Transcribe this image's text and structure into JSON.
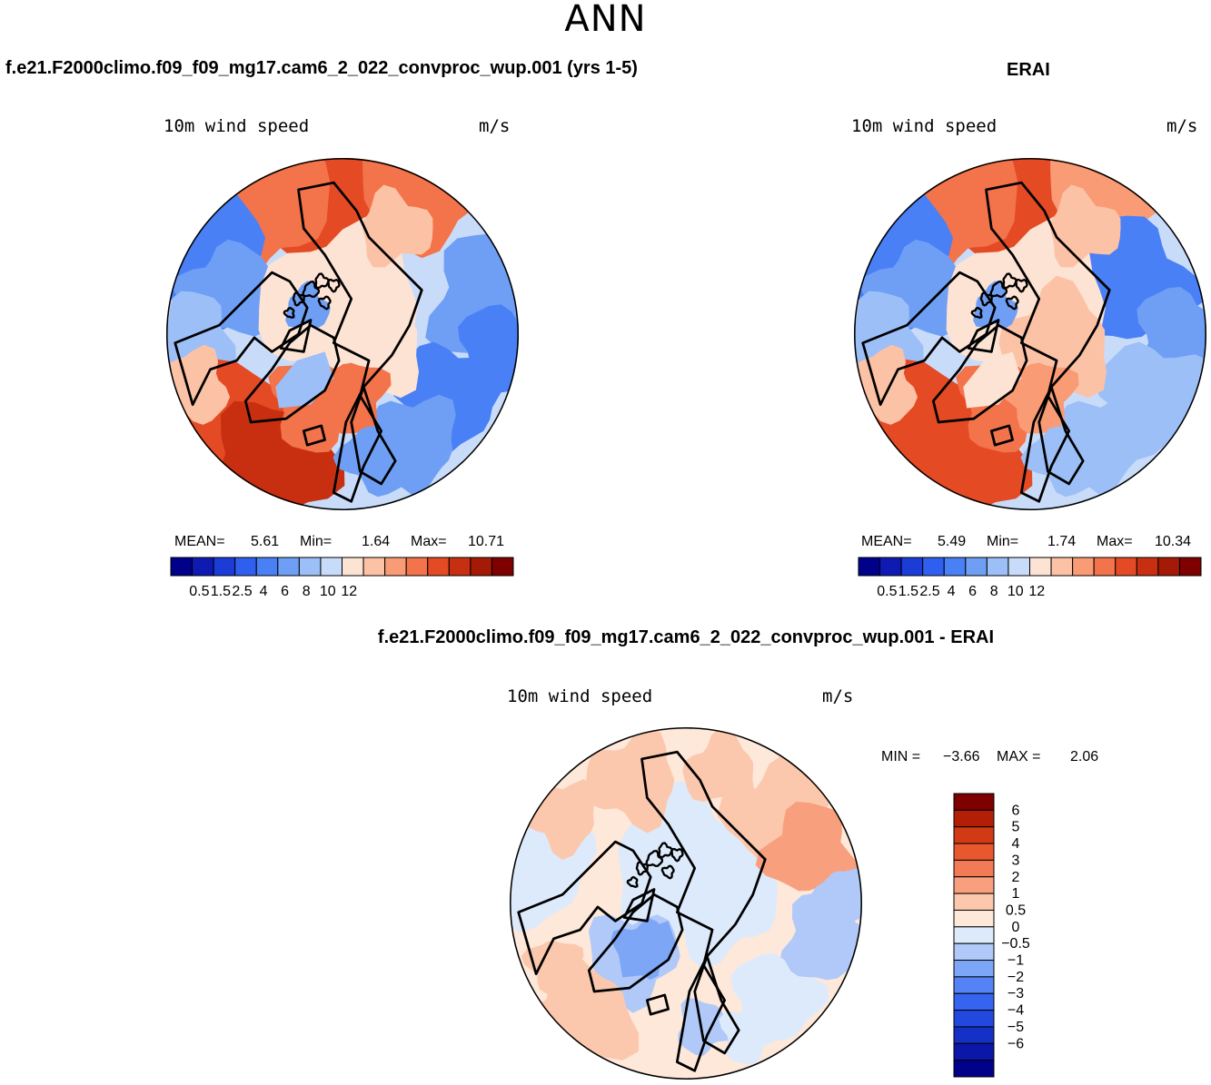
{
  "title": "ANN",
  "colors": {
    "abs_scale": [
      "#00008b",
      "#0f1ab3",
      "#1c3cd8",
      "#2f5fef",
      "#4a80f5",
      "#6f9ff4",
      "#9dbff7",
      "#c8dcfa",
      "#fde3d3",
      "#fcc2a6",
      "#f99b74",
      "#f3734b",
      "#e44a24",
      "#c72f10",
      "#a51907",
      "#7f0000"
    ],
    "diff_scale": [
      "#00008b",
      "#0a17a8",
      "#1530c6",
      "#2248e0",
      "#3565f0",
      "#5383f4",
      "#7ea6f6",
      "#b0c9f9",
      "#ddeafc",
      "#fde8da",
      "#fcc8ad",
      "#f8a07e",
      "#f27a54",
      "#e8582f",
      "#d23a14",
      "#b21f06",
      "#7f0000"
    ]
  },
  "chart_data": [
    {
      "type": "heatmap",
      "panel": "left",
      "case_title": "f.e21.F2000climo.f09_f09_mg17.cam6_2_022_convproc_wup.001 (yrs 1-5)",
      "variable": "10m wind speed",
      "units": "m/s",
      "projection": "north polar stereographic",
      "stats": {
        "mean_label": "MEAN=",
        "mean": "5.61",
        "min_label": "Min=",
        "min": "1.64",
        "max_label": "Max=",
        "max": "10.71"
      },
      "colorbar": {
        "orientation": "horizontal",
        "tick_labels": [
          "0.5",
          "1.5",
          "2.5",
          "4",
          "6",
          "8",
          "10",
          "12"
        ],
        "ticks_at_boundaries": [
          2,
          4,
          6,
          8,
          10,
          12,
          14,
          16
        ]
      }
    },
    {
      "type": "heatmap",
      "panel": "right",
      "case_title": "ERAI",
      "variable": "10m wind speed",
      "units": "m/s",
      "projection": "north polar stereographic",
      "stats": {
        "mean_label": "MEAN=",
        "mean": "5.49",
        "min_label": "Min=",
        "min": "1.74",
        "max_label": "Max=",
        "max": "10.34"
      },
      "colorbar": {
        "orientation": "horizontal",
        "tick_labels": [
          "0.5",
          "1.5",
          "2.5",
          "4",
          "6",
          "8",
          "10",
          "12"
        ],
        "ticks_at_boundaries": [
          2,
          4,
          6,
          8,
          10,
          12,
          14,
          16
        ]
      }
    },
    {
      "type": "heatmap",
      "panel": "difference",
      "case_title": "f.e21.F2000climo.f09_f09_mg17.cam6_2_022_convproc_wup.001 - ERAI",
      "variable": "10m wind speed",
      "units": "m/s",
      "projection": "north polar stereographic",
      "stats": {
        "min_label": "MIN =",
        "min": "−3.66",
        "max_label": "MAX =",
        "max": "2.06"
      },
      "colorbar": {
        "orientation": "vertical",
        "tick_labels": [
          "6",
          "5",
          "4",
          "3",
          "2",
          "1",
          "0.5",
          "0",
          "−0.5",
          "−1",
          "−2",
          "−3",
          "−4",
          "−5",
          "−6"
        ]
      }
    }
  ]
}
